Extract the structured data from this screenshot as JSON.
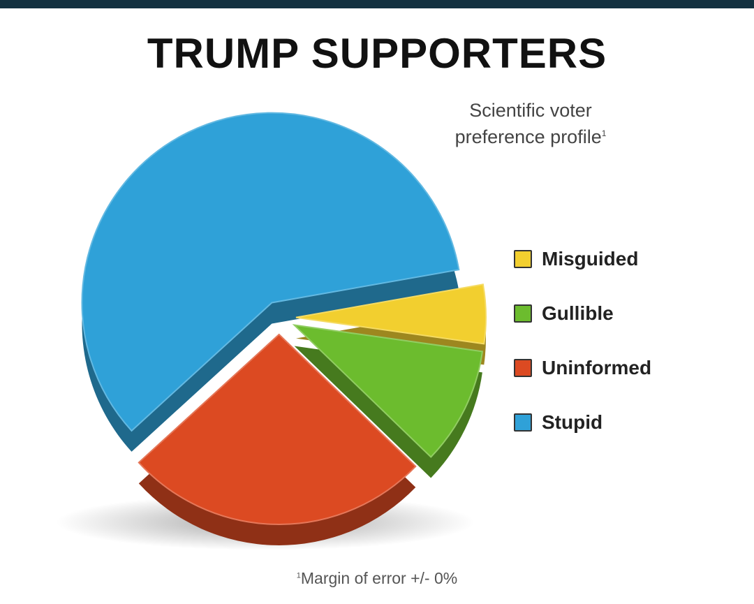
{
  "colors": {
    "topbar": "#12303f",
    "Misguided": "#f2cf2f",
    "Gullible": "#6cbc2e",
    "Uninformed": "#dc4a22",
    "Stupid": "#2fa1d8"
  },
  "chart_data": {
    "type": "pie",
    "title": "TRUMP SUPPORTERS",
    "subtitle": "Scientific voter preference profile",
    "subtitle_mark": "1",
    "legend_position": "right",
    "labels": [
      "Misguided",
      "Gullible",
      "Uninformed",
      "Stupid"
    ],
    "values": [
      5,
      10,
      26,
      59
    ],
    "footnote_mark": "1",
    "footnote": "Margin of error +/- 0%"
  }
}
